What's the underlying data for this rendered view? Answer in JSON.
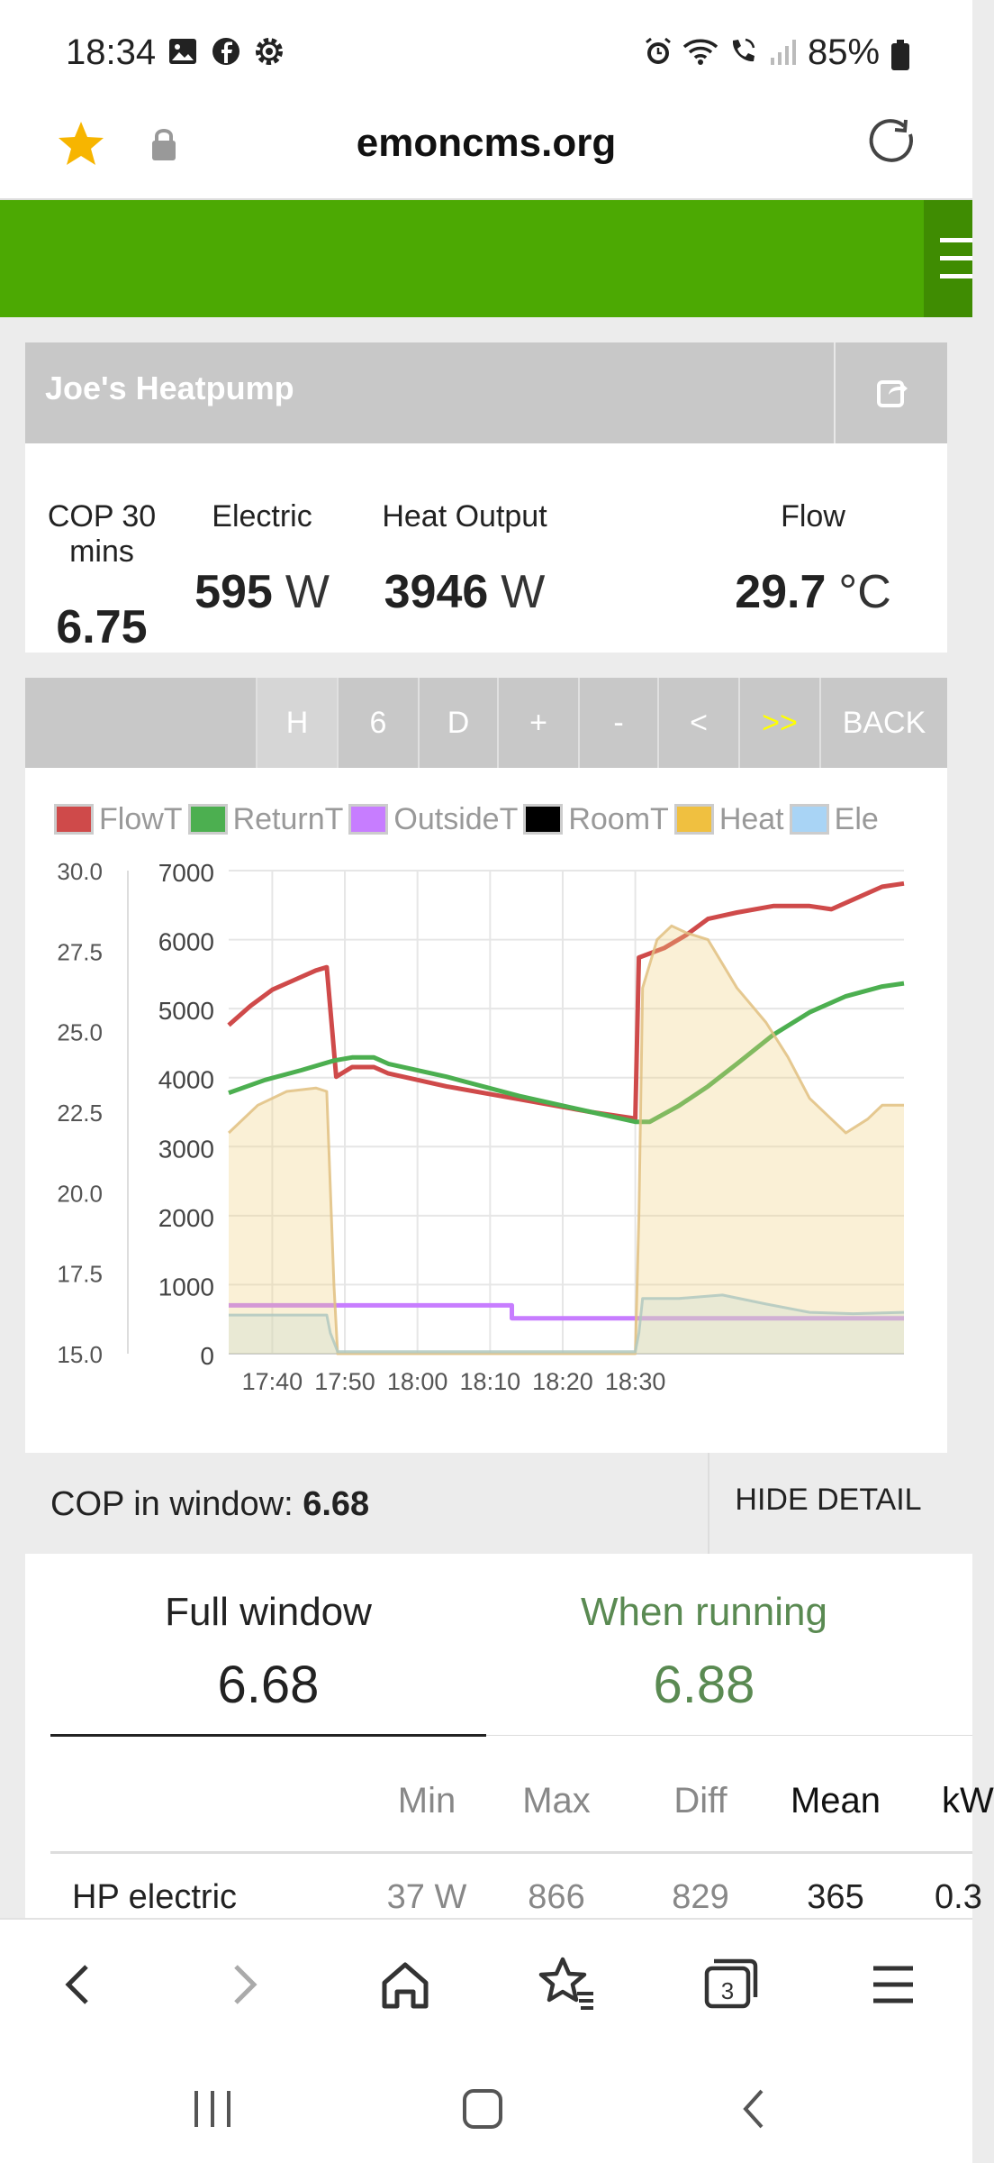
{
  "status_bar": {
    "time": "18:34",
    "battery": "85%"
  },
  "url_bar": {
    "url": "emoncms.org"
  },
  "title_panel": {
    "title": "Joe's Heatpump"
  },
  "stats": [
    {
      "label": "COP 30 mins",
      "value": "6.75",
      "unit": ""
    },
    {
      "label": "Electric",
      "value": "595",
      "unit": "W"
    },
    {
      "label": "Heat Output",
      "value": "3946",
      "unit": "W"
    },
    {
      "label": "Flow",
      "value": "29.7",
      "unit": "°C"
    }
  ],
  "toolbar": {
    "buttons": [
      "H",
      "6",
      "D",
      "+",
      "-",
      "<",
      ">>",
      "BACK"
    ]
  },
  "chart_data": {
    "type": "line",
    "legend_items": [
      {
        "name": "FlowT",
        "color": "#cf4a4a"
      },
      {
        "name": "ReturnT",
        "color": "#4caf50"
      },
      {
        "name": "OutsideT",
        "color": "#c77dff"
      },
      {
        "name": "RoomT",
        "color": "#000000"
      },
      {
        "name": "Heat",
        "color": "#f0c040"
      },
      {
        "name": "Ele",
        "color": "#a9d4f5"
      }
    ],
    "y_left_ticks": [
      "30.0",
      "27.5",
      "25.0",
      "22.5",
      "20.0",
      "17.5",
      "15.0"
    ],
    "y_right_ticks": [
      "7000",
      "6000",
      "5000",
      "4000",
      "3000",
      "2000",
      "1000",
      "0"
    ],
    "x_ticks": [
      "17:40",
      "17:50",
      "18:00",
      "18:10",
      "18:20",
      "18:30"
    ],
    "ylim_left": [
      15,
      30
    ],
    "ylim_right": [
      0,
      7000
    ],
    "x_unit": "minutes after 17:34",
    "series": [
      {
        "name": "FlowT",
        "axis": "left",
        "color": "#cf4a4a",
        "points": [
          [
            0,
            25.2
          ],
          [
            3,
            25.8
          ],
          [
            6,
            26.3
          ],
          [
            9,
            26.6
          ],
          [
            12,
            26.9
          ],
          [
            13.5,
            27.0
          ],
          [
            14.8,
            23.6
          ],
          [
            17,
            23.9
          ],
          [
            20,
            23.9
          ],
          [
            22,
            23.7
          ],
          [
            30,
            23.3
          ],
          [
            40,
            22.9
          ],
          [
            50,
            22.5
          ],
          [
            56,
            22.3
          ],
          [
            56.5,
            27.3
          ],
          [
            60,
            27.6
          ],
          [
            63,
            28.0
          ],
          [
            66,
            28.5
          ],
          [
            70,
            28.7
          ],
          [
            75,
            28.9
          ],
          [
            80,
            28.9
          ],
          [
            83,
            28.8
          ],
          [
            86,
            29.1
          ],
          [
            90,
            29.5
          ],
          [
            93,
            29.6
          ]
        ]
      },
      {
        "name": "ReturnT",
        "axis": "left",
        "color": "#4caf50",
        "points": [
          [
            0,
            23.1
          ],
          [
            5,
            23.5
          ],
          [
            10,
            23.8
          ],
          [
            14.5,
            24.1
          ],
          [
            17,
            24.2
          ],
          [
            20,
            24.2
          ],
          [
            22,
            24.0
          ],
          [
            30,
            23.6
          ],
          [
            40,
            23.0
          ],
          [
            50,
            22.5
          ],
          [
            56,
            22.2
          ],
          [
            58,
            22.2
          ],
          [
            62,
            22.7
          ],
          [
            66,
            23.3
          ],
          [
            70,
            24.0
          ],
          [
            75,
            24.9
          ],
          [
            80,
            25.6
          ],
          [
            85,
            26.1
          ],
          [
            90,
            26.4
          ],
          [
            93,
            26.5
          ]
        ]
      },
      {
        "name": "OutsideT",
        "axis": "left",
        "color": "#c77dff",
        "points": [
          [
            0,
            16.5
          ],
          [
            39,
            16.5
          ],
          [
            39,
            16.1
          ],
          [
            93,
            16.1
          ]
        ]
      },
      {
        "name": "Heat",
        "axis": "right",
        "color": "#e0c080",
        "points": [
          [
            0,
            3200
          ],
          [
            4,
            3600
          ],
          [
            8,
            3800
          ],
          [
            12,
            3850
          ],
          [
            13.5,
            3800
          ],
          [
            14.5,
            1000
          ],
          [
            15,
            0
          ],
          [
            56,
            0
          ],
          [
            56.5,
            2000
          ],
          [
            57,
            5300
          ],
          [
            59,
            6000
          ],
          [
            61,
            6200
          ],
          [
            63,
            6100
          ],
          [
            66,
            6000
          ],
          [
            70,
            5300
          ],
          [
            74,
            4800
          ],
          [
            77,
            4300
          ],
          [
            80,
            3700
          ],
          [
            83,
            3400
          ],
          [
            85,
            3200
          ],
          [
            88,
            3400
          ],
          [
            90,
            3600
          ],
          [
            93,
            3600
          ]
        ]
      },
      {
        "name": "Ele",
        "axis": "right",
        "color": "#b0c8c0",
        "points": [
          [
            0,
            560
          ],
          [
            13.5,
            560
          ],
          [
            14,
            300
          ],
          [
            15,
            30
          ],
          [
            56,
            30
          ],
          [
            56.5,
            300
          ],
          [
            57,
            800
          ],
          [
            62,
            800
          ],
          [
            68,
            850
          ],
          [
            74,
            720
          ],
          [
            80,
            600
          ],
          [
            86,
            580
          ],
          [
            93,
            600
          ]
        ]
      }
    ]
  },
  "cop_row": {
    "label": "COP in window:",
    "value": "6.68",
    "button": "HIDE DETAIL"
  },
  "detail": {
    "full_window": {
      "label": "Full window",
      "value": "6.68"
    },
    "when_running": {
      "label": "When running",
      "value": "6.88"
    },
    "table_headers": [
      "Min",
      "Max",
      "Diff",
      "Mean",
      "kW"
    ],
    "rows": [
      {
        "name": "HP electric",
        "min": "37 W",
        "max": "866",
        "diff": "829",
        "mean": "365",
        "kw": "0.3"
      }
    ]
  },
  "colors": {
    "green_header": "#4ca903",
    "when_running": "#5a8a52",
    "panel_gray": "#c8c8c8"
  }
}
